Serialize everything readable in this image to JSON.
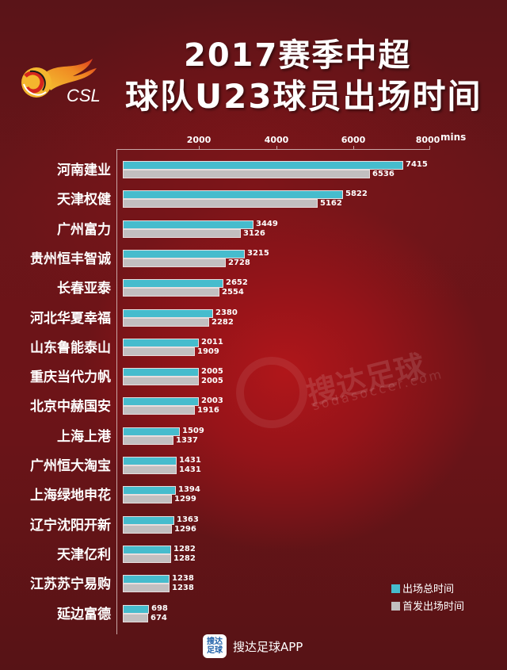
{
  "header": {
    "title_line1": "2017赛季中超",
    "title_line2": "球队U23球员出场时间",
    "logo_text": "CSL"
  },
  "axis": {
    "ticks": [
      "2000",
      "4000",
      "6000",
      "8000"
    ],
    "unit": "mins"
  },
  "legend": {
    "total_label": "出场总时间",
    "start_label": "首发出场时间",
    "total_color": "#46bccd",
    "start_color": "#c2bfc0"
  },
  "watermark": {
    "text": "搜达足球",
    "sub": "sodasoccer.com"
  },
  "footer": {
    "icon_line1": "搜达",
    "icon_line2": "足球",
    "app_name": "搜达足球APP"
  },
  "rows": [
    {
      "team": "河南建业",
      "total": "7415",
      "start": "6536"
    },
    {
      "team": "天津权健",
      "total": "5822",
      "start": "5162"
    },
    {
      "team": "广州富力",
      "total": "3449",
      "start": "3126"
    },
    {
      "team": "贵州恒丰智诚",
      "total": "3215",
      "start": "2728"
    },
    {
      "team": "长春亚泰",
      "total": "2652",
      "start": "2554"
    },
    {
      "team": "河北华夏幸福",
      "total": "2380",
      "start": "2282"
    },
    {
      "team": "山东鲁能泰山",
      "total": "2011",
      "start": "1909"
    },
    {
      "team": "重庆当代力帆",
      "total": "2005",
      "start": "2005"
    },
    {
      "team": "北京中赫国安",
      "total": "2003",
      "start": "1916"
    },
    {
      "team": "上海上港",
      "total": "1509",
      "start": "1337"
    },
    {
      "team": "广州恒大淘宝",
      "total": "1431",
      "start": "1431"
    },
    {
      "team": "上海绿地申花",
      "total": "1394",
      "start": "1299"
    },
    {
      "team": "辽宁沈阳开新",
      "total": "1363",
      "start": "1296"
    },
    {
      "team": "天津亿利",
      "total": "1282",
      "start": "1282"
    },
    {
      "team": "江苏苏宁易购",
      "total": "1238",
      "start": "1238"
    },
    {
      "team": "延边富德",
      "total": "698",
      "start": "674"
    }
  ],
  "chart_data": {
    "type": "bar",
    "orientation": "horizontal",
    "title": "2017赛季中超 球队U23球员出场时间",
    "xlabel": "mins",
    "ylabel": "",
    "xlim": [
      0,
      8000
    ],
    "xticks": [
      2000,
      4000,
      6000,
      8000
    ],
    "grid": false,
    "legend_position": "bottom-right",
    "categories": [
      "河南建业",
      "天津权健",
      "广州富力",
      "贵州恒丰智诚",
      "长春亚泰",
      "河北华夏幸福",
      "山东鲁能泰山",
      "重庆当代力帆",
      "北京中赫国安",
      "上海上港",
      "广州恒大淘宝",
      "上海绿地申花",
      "辽宁沈阳开新",
      "天津亿利",
      "江苏苏宁易购",
      "延边富德"
    ],
    "series": [
      {
        "name": "出场总时间",
        "color": "#46bccd",
        "values": [
          7415,
          5822,
          3449,
          3215,
          2652,
          2380,
          2011,
          2005,
          2003,
          1509,
          1431,
          1394,
          1363,
          1282,
          1238,
          698
        ]
      },
      {
        "name": "首发出场时间",
        "color": "#c2bfc0",
        "values": [
          6536,
          5162,
          3126,
          2728,
          2554,
          2282,
          1909,
          2005,
          1916,
          1337,
          1431,
          1299,
          1296,
          1282,
          1238,
          674
        ]
      }
    ]
  }
}
